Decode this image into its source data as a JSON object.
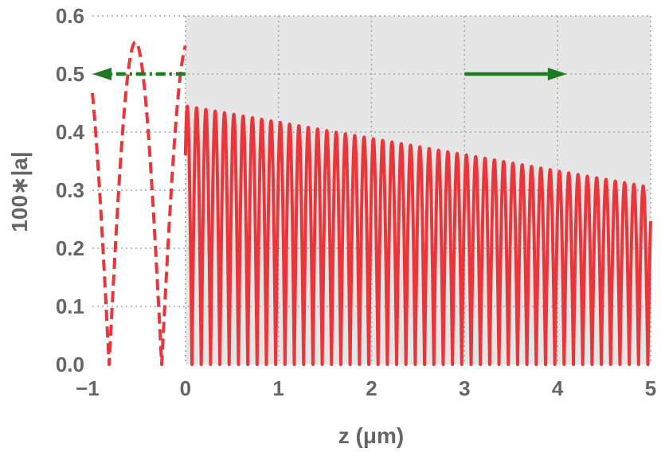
{
  "chart_data": {
    "type": "line",
    "title": "",
    "xlabel": "z (μm)",
    "ylabel": "100∗|a|",
    "xlim": [
      -1,
      5
    ],
    "ylim": [
      0,
      0.6
    ],
    "x_ticks": [
      -1,
      0,
      1,
      2,
      3,
      4,
      5
    ],
    "x_tick_labels": [
      "−1",
      "0",
      "1",
      "2",
      "3",
      "4",
      "5"
    ],
    "y_ticks": [
      0.0,
      0.1,
      0.2,
      0.3,
      0.4,
      0.5,
      0.6
    ],
    "y_tick_labels": [
      "0.0",
      "0.1",
      "0.2",
      "0.3",
      "0.4",
      "0.5",
      "0.6"
    ],
    "grid": true,
    "shaded_region": {
      "x_from": 0,
      "x_to": 5,
      "color": "#e6e6e6"
    },
    "series": [
      {
        "style": "dashed",
        "color": "#e8363a",
        "x_range": [
          -1,
          0
        ],
        "envelope": {
          "amplitude": 0.555
        },
        "oscillation_period_um": 0.565,
        "peaks": [
          {
            "x": -0.53,
            "y": 0.555
          },
          {
            "x": 0.0,
            "y": 0.555
          }
        ],
        "zeros": [
          -0.82,
          -0.27
        ]
      },
      {
        "style": "solid",
        "color": "#e8363a",
        "x_range": [
          0,
          5
        ],
        "envelope": {
          "start": 0.445,
          "end": 0.305
        },
        "oscillation_period_um": 0.1,
        "peaks": [
          {
            "x": 0.02,
            "y": 0.445
          },
          {
            "x": 4.94,
            "y": 0.305
          }
        ],
        "zeros": [
          0.07,
          4.99
        ]
      }
    ],
    "arrows": [
      {
        "style": "dash-dot",
        "direction": "left",
        "color": "#1e7a1e",
        "from": [
          0.0,
          0.5
        ],
        "to": [
          -1.0,
          0.5
        ]
      },
      {
        "style": "solid",
        "direction": "right",
        "color": "#1e7a1e",
        "from": [
          3.0,
          0.5
        ],
        "to": [
          4.1,
          0.5
        ]
      }
    ],
    "colors": {
      "axis_text": "#666666",
      "grid": "#a8a8a8",
      "curve": "#e8363a",
      "arrow": "#1e7a1e"
    }
  }
}
